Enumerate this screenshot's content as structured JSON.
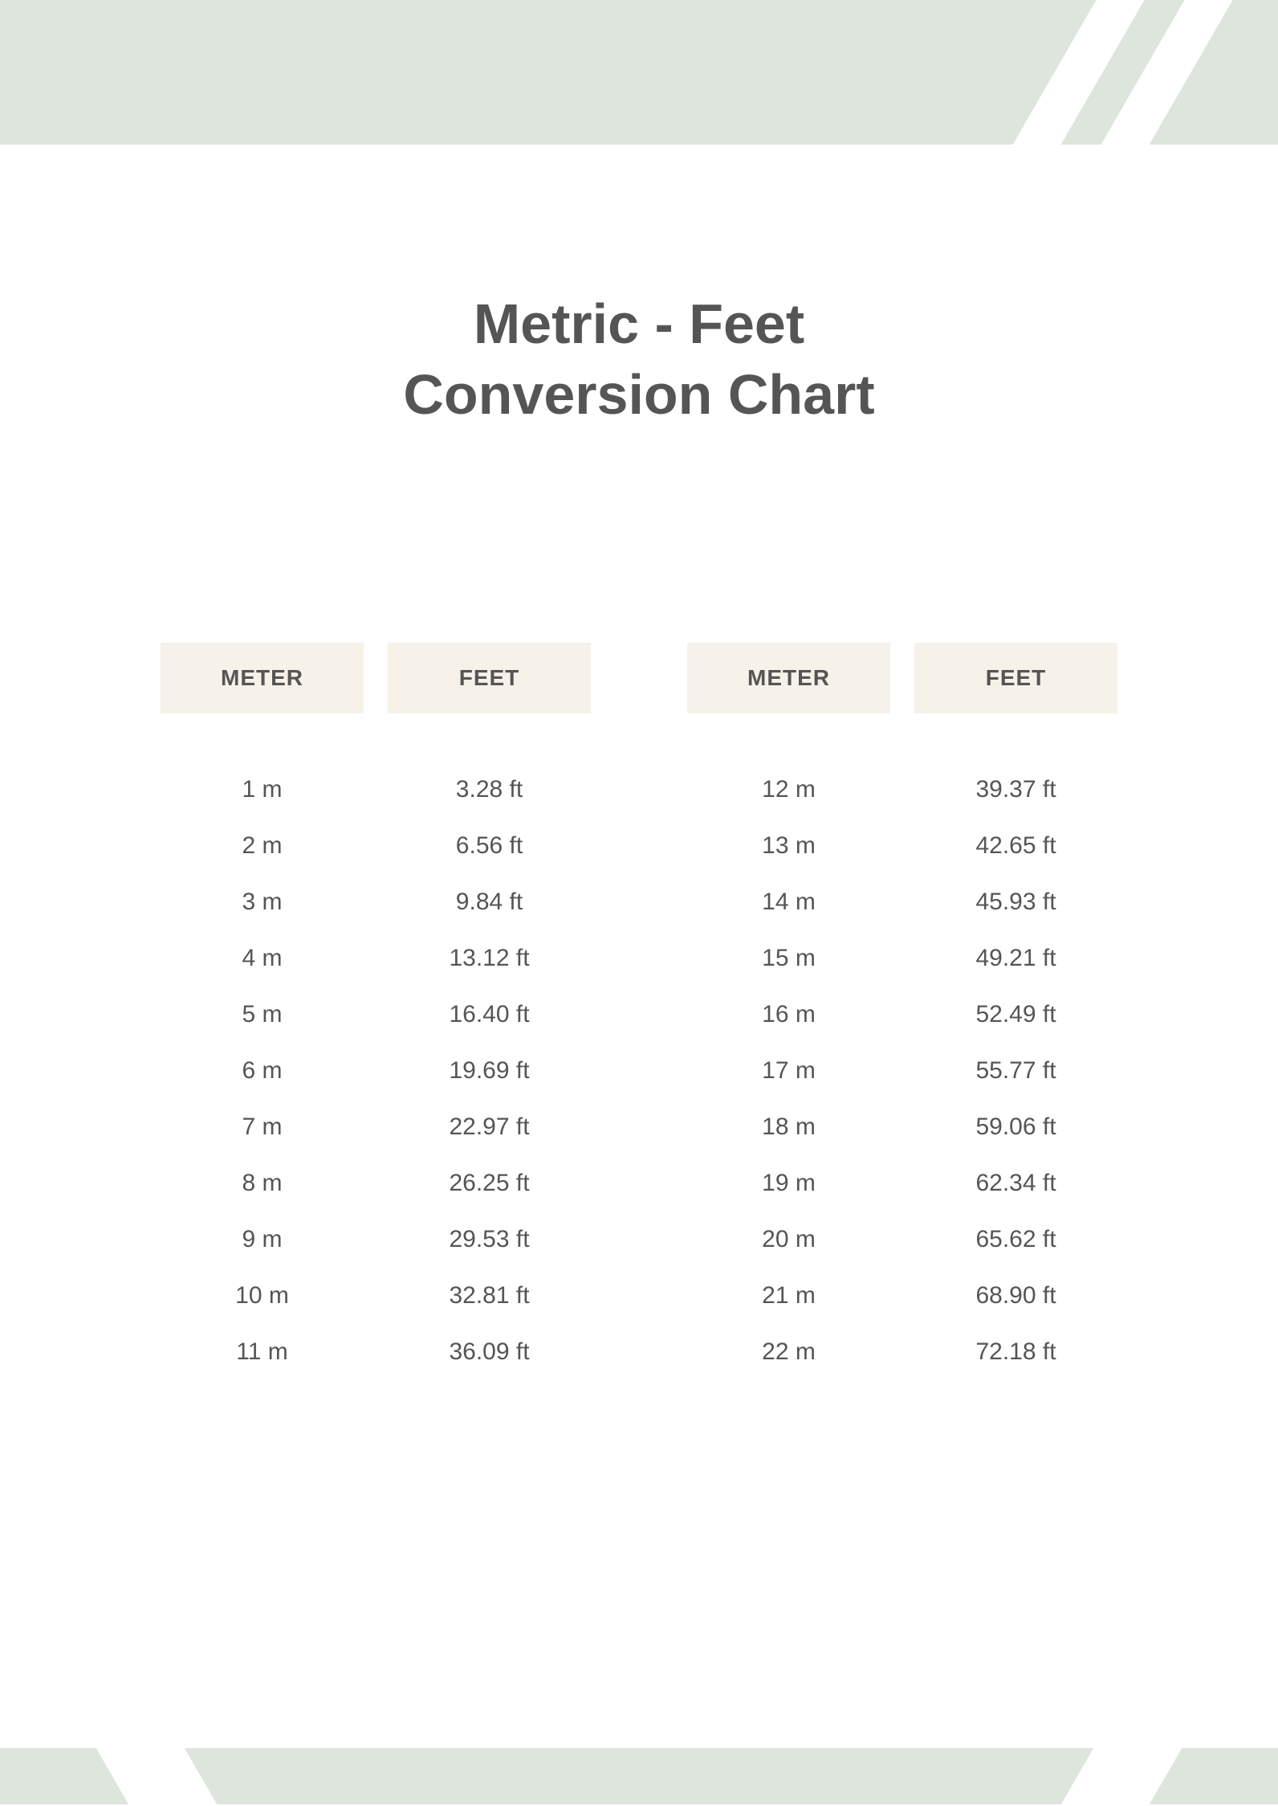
{
  "colors": {
    "banner_bg": "#dde5dd",
    "header_bg": "#f6f1e9",
    "text": "#555555",
    "page_bg": "#ffffff"
  },
  "title": {
    "line1": "Metric - Feet",
    "line2": "Conversion Chart",
    "fontsize": 70,
    "fontweight": 700
  },
  "table": {
    "type": "table",
    "header_meter": "METER",
    "header_feet": "FEET",
    "header_fontsize": 28,
    "cell_fontsize": 30,
    "left": {
      "rows": [
        {
          "meter": "1 m",
          "feet": "3.28 ft"
        },
        {
          "meter": "2 m",
          "feet": "6.56 ft"
        },
        {
          "meter": "3 m",
          "feet": "9.84 ft"
        },
        {
          "meter": "4 m",
          "feet": "13.12 ft"
        },
        {
          "meter": "5 m",
          "feet": "16.40 ft"
        },
        {
          "meter": "6 m",
          "feet": "19.69 ft"
        },
        {
          "meter": "7 m",
          "feet": "22.97 ft"
        },
        {
          "meter": "8 m",
          "feet": "26.25 ft"
        },
        {
          "meter": "9 m",
          "feet": "29.53 ft"
        },
        {
          "meter": "10 m",
          "feet": "32.81 ft"
        },
        {
          "meter": "11 m",
          "feet": "36.09 ft"
        }
      ]
    },
    "right": {
      "rows": [
        {
          "meter": "12 m",
          "feet": "39.37 ft"
        },
        {
          "meter": "13 m",
          "feet": "42.65 ft"
        },
        {
          "meter": "14 m",
          "feet": "45.93 ft"
        },
        {
          "meter": "15 m",
          "feet": "49.21 ft"
        },
        {
          "meter": "16 m",
          "feet": "52.49 ft"
        },
        {
          "meter": "17 m",
          "feet": "55.77 ft"
        },
        {
          "meter": "18 m",
          "feet": "59.06 ft"
        },
        {
          "meter": "19 m",
          "feet": "62.34 ft"
        },
        {
          "meter": "20 m",
          "feet": "65.62 ft"
        },
        {
          "meter": "21 m",
          "feet": "68.90 ft"
        },
        {
          "meter": "22 m",
          "feet": "72.18 ft"
        }
      ]
    }
  }
}
